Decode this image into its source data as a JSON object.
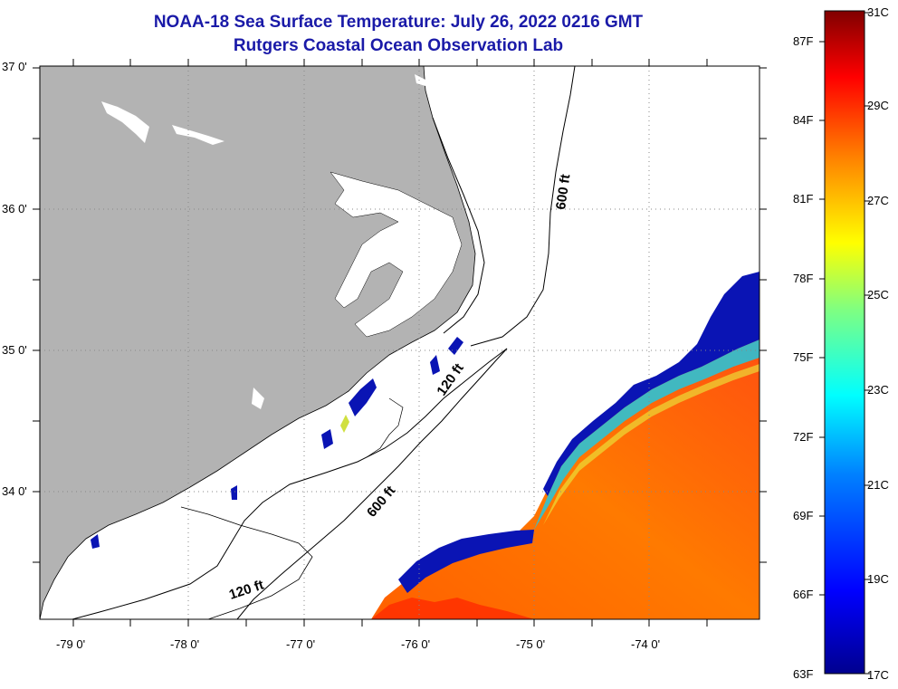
{
  "title": {
    "line1": "NOAA-18 Sea Surface Temperature:  July 26, 2022 0216 GMT",
    "line2": "Rutgers Coastal Ocean Observation Lab"
  },
  "map": {
    "lat_labels": [
      "37 0'",
      "36 0'",
      "35 0'",
      "34 0'"
    ],
    "lon_labels": [
      "-79 0'",
      "-78 0'",
      "-77 0'",
      "-76 0'",
      "-75 0'",
      "-74 0'"
    ],
    "contours": [
      {
        "label": "600 ft"
      },
      {
        "label": "120 ft"
      },
      {
        "label": "600 ft"
      },
      {
        "label": "120 ft"
      }
    ],
    "colors": {
      "land": "#b3b3b3",
      "ocean_no_data": "#ffffff",
      "gridline": "#888888"
    }
  },
  "colorbar": {
    "fahrenheit": [
      "87F",
      "84F",
      "81F",
      "78F",
      "75F",
      "72F",
      "69F",
      "66F",
      "63F"
    ],
    "celsius": [
      "31C",
      "29C",
      "27C",
      "25C",
      "23C",
      "21C",
      "19C",
      "17C"
    ],
    "range_c": [
      17,
      31
    ],
    "colors": [
      "#00008f",
      "#0000ff",
      "#0080ff",
      "#00ffff",
      "#80ff80",
      "#ffff00",
      "#ff8000",
      "#ff0000",
      "#800000"
    ]
  }
}
